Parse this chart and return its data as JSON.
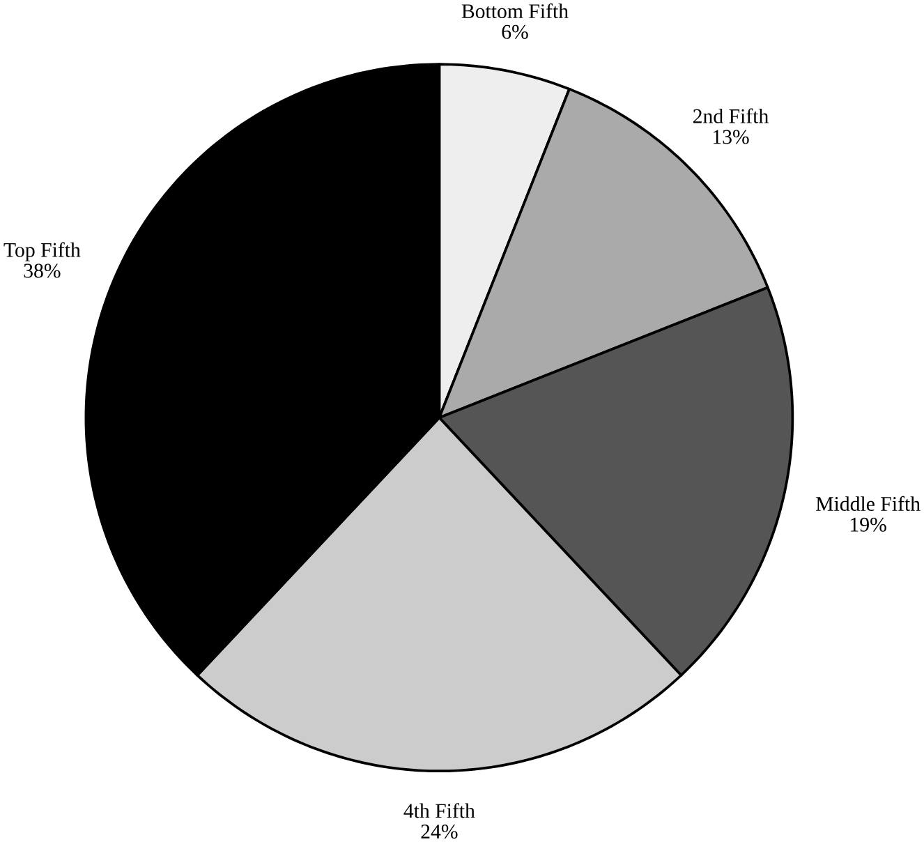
{
  "chart_data": {
    "type": "pie",
    "categories": [
      "Bottom Fifth",
      "2nd Fifth",
      "Middle Fifth",
      "4th Fifth",
      "Top Fifth"
    ],
    "values": [
      6,
      13,
      19,
      24,
      38
    ],
    "value_labels": [
      "6%",
      "13%",
      "19%",
      "24%",
      "38%"
    ],
    "colors": [
      "#eeeeee",
      "#aaaaaa",
      "#555555",
      "#cccccc",
      "#000000"
    ]
  }
}
